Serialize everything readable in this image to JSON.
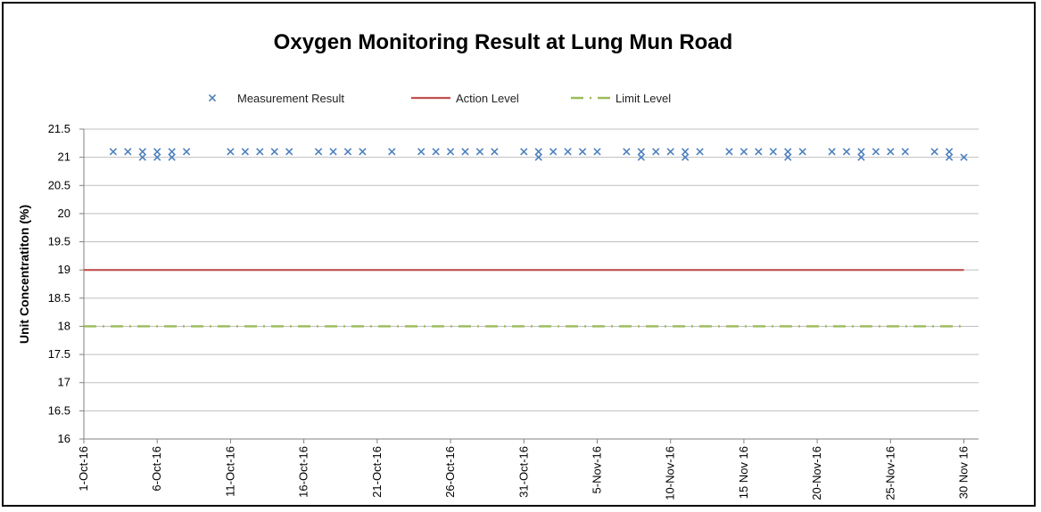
{
  "chart_data": {
    "type": "line",
    "title": "Oxygen Monitoring Result at Lung Mun Road",
    "ylabel": "Unit Concentratiton (%)",
    "xlabel": "",
    "ylim": [
      16,
      21.5
    ],
    "xlim": [
      "1-Oct-16",
      "1-Dec-16"
    ],
    "yticks": [
      "16",
      "16.5",
      "17",
      "17.5",
      "18",
      "18.5",
      "19",
      "19.5",
      "20",
      "20.5",
      "21",
      "21.5"
    ],
    "xticks": [
      "1-Oct-16",
      "6-Oct-16",
      "11-Oct-16",
      "16-Oct-16",
      "21-Oct-16",
      "26-Oct-16",
      "31-Oct-16",
      "5-Nov-16",
      "10-Nov-16",
      "15-Nov-16",
      "20-Nov-16",
      "25-Nov-16",
      "30-Nov-16"
    ],
    "xtick_labels": [
      "1-Oct-16",
      "6-Oct-16",
      "11-Oct-16",
      "16-Oct-16",
      "21-Oct-16",
      "26-Oct-16",
      "31-Oct-16",
      "5-Nov-16",
      "10-Nov-16",
      "15 Nov 16",
      "20-Nov-16",
      "25-Nov-16",
      "30 Nov 16"
    ],
    "grid": true,
    "legend_position": "top",
    "series": [
      {
        "name": "Measurement Result",
        "style": "markers-x",
        "color": "#4f81bd",
        "points": [
          [
            "3-Oct-16",
            21.1
          ],
          [
            "4-Oct-16",
            21.1
          ],
          [
            "5-Oct-16",
            21.1
          ],
          [
            "5-Oct-16",
            21.0
          ],
          [
            "6-Oct-16",
            21.1
          ],
          [
            "6-Oct-16",
            21.0
          ],
          [
            "7-Oct-16",
            21.1
          ],
          [
            "7-Oct-16",
            21.0
          ],
          [
            "8-Oct-16",
            21.1
          ],
          [
            "11-Oct-16",
            21.1
          ],
          [
            "12-Oct-16",
            21.1
          ],
          [
            "13-Oct-16",
            21.1
          ],
          [
            "14-Oct-16",
            21.1
          ],
          [
            "15-Oct-16",
            21.1
          ],
          [
            "17-Oct-16",
            21.1
          ],
          [
            "18-Oct-16",
            21.1
          ],
          [
            "19-Oct-16",
            21.1
          ],
          [
            "20-Oct-16",
            21.1
          ],
          [
            "22-Oct-16",
            21.1
          ],
          [
            "24-Oct-16",
            21.1
          ],
          [
            "25-Oct-16",
            21.1
          ],
          [
            "26-Oct-16",
            21.1
          ],
          [
            "27-Oct-16",
            21.1
          ],
          [
            "28-Oct-16",
            21.1
          ],
          [
            "29-Oct-16",
            21.1
          ],
          [
            "31-Oct-16",
            21.1
          ],
          [
            "1-Nov-16",
            21.1
          ],
          [
            "1-Nov-16",
            21.0
          ],
          [
            "2-Nov-16",
            21.1
          ],
          [
            "3-Nov-16",
            21.1
          ],
          [
            "4-Nov-16",
            21.1
          ],
          [
            "5-Nov-16",
            21.1
          ],
          [
            "7-Nov-16",
            21.1
          ],
          [
            "8-Nov-16",
            21.1
          ],
          [
            "8-Nov-16",
            21.0
          ],
          [
            "9-Nov-16",
            21.1
          ],
          [
            "10-Nov-16",
            21.1
          ],
          [
            "11-Nov-16",
            21.1
          ],
          [
            "11-Nov-16",
            21.0
          ],
          [
            "12-Nov-16",
            21.1
          ],
          [
            "14-Nov-16",
            21.1
          ],
          [
            "15-Nov-16",
            21.1
          ],
          [
            "16-Nov-16",
            21.1
          ],
          [
            "17-Nov-16",
            21.1
          ],
          [
            "18-Nov-16",
            21.1
          ],
          [
            "18-Nov-16",
            21.0
          ],
          [
            "19-Nov-16",
            21.1
          ],
          [
            "21-Nov-16",
            21.1
          ],
          [
            "22-Nov-16",
            21.1
          ],
          [
            "23-Nov-16",
            21.1
          ],
          [
            "23-Nov-16",
            21.0
          ],
          [
            "24-Nov-16",
            21.1
          ],
          [
            "25-Nov-16",
            21.1
          ],
          [
            "26-Nov-16",
            21.1
          ],
          [
            "28-Nov-16",
            21.1
          ],
          [
            "29-Nov-16",
            21.1
          ],
          [
            "29-Nov-16",
            21.0
          ],
          [
            "30-Nov-16",
            21.0
          ]
        ]
      },
      {
        "name": "Action Level",
        "style": "solid-line",
        "color": "#c0504d",
        "points": [
          [
            "1-Oct-16",
            19
          ],
          [
            "30-Nov-16",
            19
          ]
        ]
      },
      {
        "name": "Limit Level",
        "style": "dash-dot-line",
        "color": "#9bbb59",
        "points": [
          [
            "1-Oct-16",
            18
          ],
          [
            "30-Nov-16",
            18
          ]
        ]
      }
    ]
  }
}
